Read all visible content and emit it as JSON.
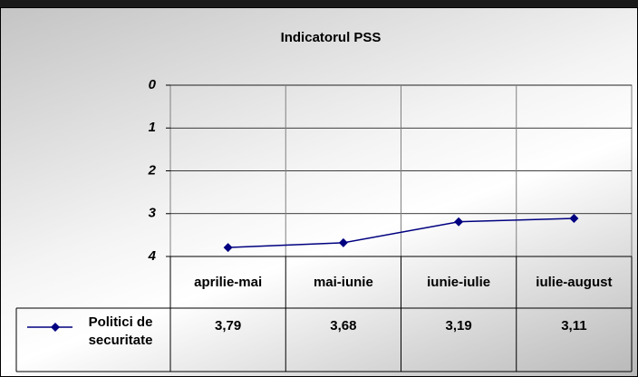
{
  "chart_data": {
    "type": "line",
    "title": "Indicatorul PSS",
    "categories": [
      "aprilie-mai",
      "mai-iunie",
      "iunie-iulie",
      "iulie-august"
    ],
    "series": [
      {
        "name": "Politici de securitate",
        "color": "#000080",
        "values": [
          3.79,
          3.68,
          3.19,
          3.11
        ],
        "value_labels": [
          "3,79",
          "3,68",
          "3,19",
          "3,11"
        ]
      }
    ],
    "ylim": [
      0,
      4
    ],
    "yticks": [
      0,
      1,
      2,
      3,
      4
    ],
    "y_reversed": true,
    "grid": true,
    "data_table": true
  }
}
